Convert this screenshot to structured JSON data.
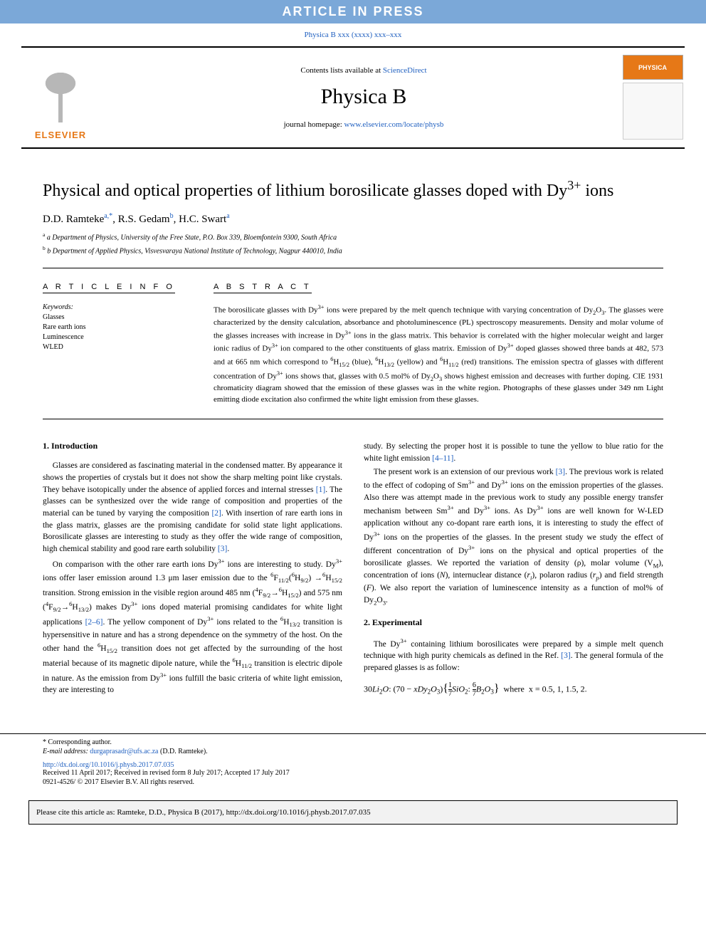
{
  "banner": "ARTICLE IN PRESS",
  "citation_top": "Physica B xxx (xxxx) xxx–xxx",
  "header": {
    "publisher": "ELSEVIER",
    "contents_prefix": "Contents lists available at ",
    "contents_link": "ScienceDirect",
    "journal_name": "Physica B",
    "homepage_prefix": "journal homepage: ",
    "homepage_url": "www.elsevier.com/locate/physb",
    "cover_label": "PHYSICA"
  },
  "paper": {
    "title_html": "Physical and optical properties of lithium borosilicate glasses doped with Dy<sup>3+</sup> ions",
    "authors_html": "D.D. Ramteke<sup>a,*</sup>, R.S. Gedam<sup>b</sup>, H.C. Swart<sup>a</sup>",
    "affiliations": [
      "a Department of Physics, University of the Free State, P.O. Box 339, Bloemfontein 9300, South Africa",
      "b Department of Applied Physics, Visvesvaraya National Institute of Technology, Nagpur 440010, India"
    ]
  },
  "article_info": {
    "heading": "A R T I C L E  I N F O",
    "keywords_label": "Keywords:",
    "keywords": [
      "Glasses",
      "Rare earth ions",
      "Luminescence",
      "WLED"
    ]
  },
  "abstract": {
    "heading": "A B S T R A C T",
    "text_html": "The borosilicate glasses with Dy<sup>3+</sup> ions were prepared by the melt quench technique with varying concentration of Dy<sub>2</sub>O<sub>3</sub>. The glasses were characterized by the density calculation, absorbance and photoluminescence (PL) spectroscopy measurements. Density and molar volume of the glasses increases with increase in Dy<sup>3+</sup> ions in the glass matrix. This behavior is correlated with the higher molecular weight and larger ionic radius of Dy<sup>3+</sup> ion compared to the other constituents of glass matrix. Emission of Dy<sup>3+</sup> doped glasses showed three bands at 482, 573 and at 665 nm which correspond to <sup>6</sup>H<sub>15/2</sub> (blue), <sup>6</sup>H<sub>13/2</sub> (yellow) and <sup>6</sup>H<sub>11/2</sub> (red) transitions. The emission spectra of glasses with different concentration of Dy<sup>3+</sup> ions shows that, glasses with 0.5 mol% of Dy<sub>2</sub>O<sub>3</sub> shows highest emission and decreases with further doping. CIE 1931 chromaticity diagram showed that the emission of these glasses was in the white region. Photographs of these glasses under 349 nm Light emitting diode excitation also confirmed the white light emission from these glasses."
  },
  "sections": {
    "intro_heading": "1. Introduction",
    "exp_heading": "2. Experimental",
    "col1": [
      "Glasses are considered as fascinating material in the condensed matter. By appearance it shows the properties of crystals but it does not show the sharp melting point like crystals. They behave isotopically under the absence of applied forces and internal stresses <a class='ref-link'>[1]</a>. The glasses can be synthesized over the wide range of composition and properties of the material can be tuned by varying the composition <a class='ref-link'>[2]</a>. With insertion of rare earth ions in the glass matrix, glasses are the promising candidate for solid state light applications. Borosilicate glasses are interesting to study as they offer the wide range of composition, high chemical stability and good rare earth solubility <a class='ref-link'>[3]</a>.",
      "On comparison with the other rare earth ions Dy<sup>3+</sup> ions are interesting to study. Dy<sup>3+</sup> ions offer laser emission around 1.3 μm laser emission due to the <sup>6</sup>F<sub>11/2</sub>(<sup>6</sup>H<sub>9/2</sub>) →<sup>6</sup>H<sub>15/2</sub> transition. Strong emission in the visible region around 485 nm (<sup>4</sup>F<sub>9/2</sub>→<sup>6</sup>H<sub>15/2</sub>) and 575 nm (<sup>4</sup>F<sub>9/2</sub>→<sup>6</sup>H<sub>13/2</sub>) makes Dy<sup>3+</sup> ions doped material promising candidates for white light applications <a class='ref-link'>[2–6]</a>. The yellow component of Dy<sup>3+</sup> ions related to the <sup>6</sup>H<sub>13/2</sub> transition is hypersensitive in nature and has a strong dependence on the symmetry of the host. On the other hand the <sup>6</sup>H<sub>15/2</sub> transition does not get affected by the surrounding of the host material because of its magnetic dipole nature, while the <sup>6</sup>H<sub>11/2</sub> transition is electric dipole in nature. As the emission from Dy<sup>3+</sup> ions fulfill the basic criteria of white light emission, they are interesting to"
    ],
    "col2_top": [
      "study. By selecting the proper host it is possible to tune the yellow to blue ratio for the white light emission <a class='ref-link'>[4–11]</a>.",
      "The present work is an extension of our previous work <a class='ref-link'>[3]</a>. The previous work is related to the effect of codoping of Sm<sup>3+</sup> and Dy<sup>3+</sup> ions on the emission properties of the glasses. Also there was attempt made in the previous work to study any possible energy transfer mechanism between Sm<sup>3+</sup> and Dy<sup>3+</sup> ions. As Dy<sup>3+</sup> ions are well known for W-LED application without any co-dopant rare earth ions, it is interesting to study the effect of Dy<sup>3+</sup> ions on the properties of the glasses. In the present study we study the effect of different concentration of Dy<sup>3+</sup> ions on the physical and optical properties of the borosilicate glasses. We reported the variation of density (ρ), molar volume (V<sub>M</sub>), concentration of ions (<i>N</i>), internuclear distance (<i>r<sub>i</sub></i>), polaron radius (<i>r<sub>p</sub></i>) and field strength (<i>F</i>). We also report the variation of luminescence intensity as a function of mol% of Dy<sub>2</sub>O<sub>3</sub>."
    ],
    "col2_exp": [
      "The Dy<sup>3+</sup> containing lithium borosilicates were prepared by a simple melt quench technique with high purity chemicals as defined in the Ref. <a class='ref-link'>[3]</a>. The general formula of the prepared glasses is as follow:"
    ],
    "formula_html": "30<i>Li</i><sub>2</sub><i>O</i>: (70 − <i>xDy</i><sub>2</sub><i>O</i><sub>3</sub>)<span style='font-size:16px'>{</span><span style='display:inline-block;vertical-align:middle;text-align:center;font-size:10px'><span>1</span><span style='display:block;border-top:1px solid #000'>7</span></span><i>SiO</i><sub>2</sub>: <span style='display:inline-block;vertical-align:middle;text-align:center;font-size:10px'><span>6</span><span style='display:block;border-top:1px solid #000'>7</span></span><i>B</i><sub>2</sub><i>O</i><sub>3</sub><span style='font-size:16px'>}</span> &nbsp;where&nbsp; x = 0.5, 1, 1.5, 2."
  },
  "footer": {
    "corresponding": "* Corresponding author.",
    "email_label": "E-mail address: ",
    "email": "durgaprasadr@ufs.ac.za",
    "email_suffix": " (D.D. Ramteke).",
    "doi": "http://dx.doi.org/10.1016/j.physb.2017.07.035",
    "received": "Received 11 April 2017; Received in revised form 8 July 2017; Accepted 17 July 2017",
    "copyright": "0921-4526/ © 2017 Elsevier B.V. All rights reserved."
  },
  "citebox": "Please cite this article as: Ramteke, D.D., Physica B (2017), http://dx.doi.org/10.1016/j.physb.2017.07.035",
  "colors": {
    "banner_bg": "#7ba8d8",
    "link": "#2060c0",
    "elsevier": "#e67817"
  }
}
